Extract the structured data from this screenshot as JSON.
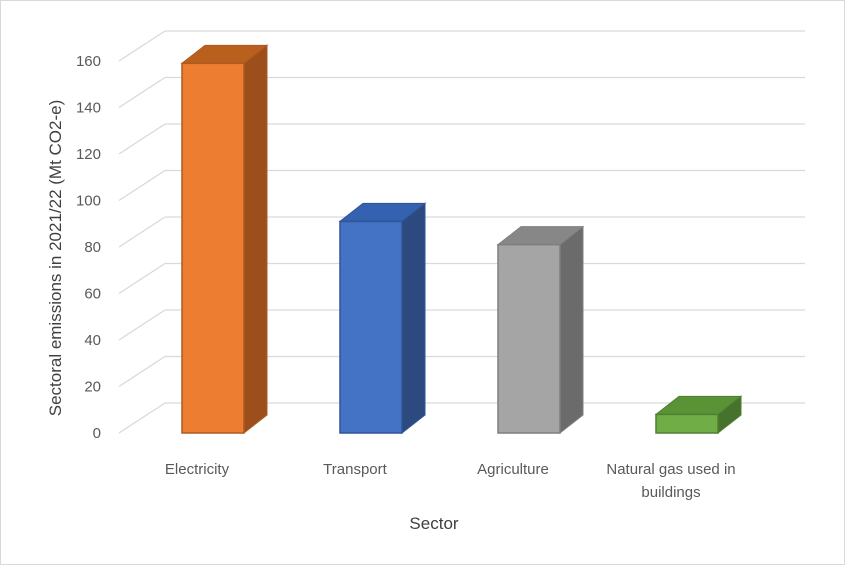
{
  "chart_data": {
    "type": "bar",
    "style": "3d-column",
    "categories": [
      "Electricity",
      "Transport",
      "Agriculture",
      "Natural gas used in buildings"
    ],
    "category_lines": [
      [
        "Electricity"
      ],
      [
        "Transport"
      ],
      [
        "Agriculture"
      ],
      [
        "Natural gas used in",
        "buildings"
      ]
    ],
    "values": [
      159,
      91,
      81,
      8
    ],
    "xlabel": "Sector",
    "ylabel": "Sectoral emissions in 2021/22 (Mt CO2-e)",
    "ylim": [
      0,
      160
    ],
    "yticks": [
      "0",
      "20",
      "40",
      "60",
      "80",
      "100",
      "120",
      "140",
      "160"
    ],
    "grid": true,
    "colors": [
      {
        "front": "#ed7d31",
        "side": "#9c4f1b",
        "top": "#b9601f",
        "edge": "#ae5a21"
      },
      {
        "front": "#4472c4",
        "side": "#2c4a80",
        "top": "#3562b0",
        "edge": "#2f5597"
      },
      {
        "front": "#a5a5a5",
        "side": "#6b6b6b",
        "top": "#878787",
        "edge": "#7f7f7f"
      },
      {
        "front": "#70ad47",
        "side": "#47722b",
        "top": "#5a9236",
        "edge": "#507e32"
      }
    ],
    "gridline_color": "#d9d9d9"
  }
}
